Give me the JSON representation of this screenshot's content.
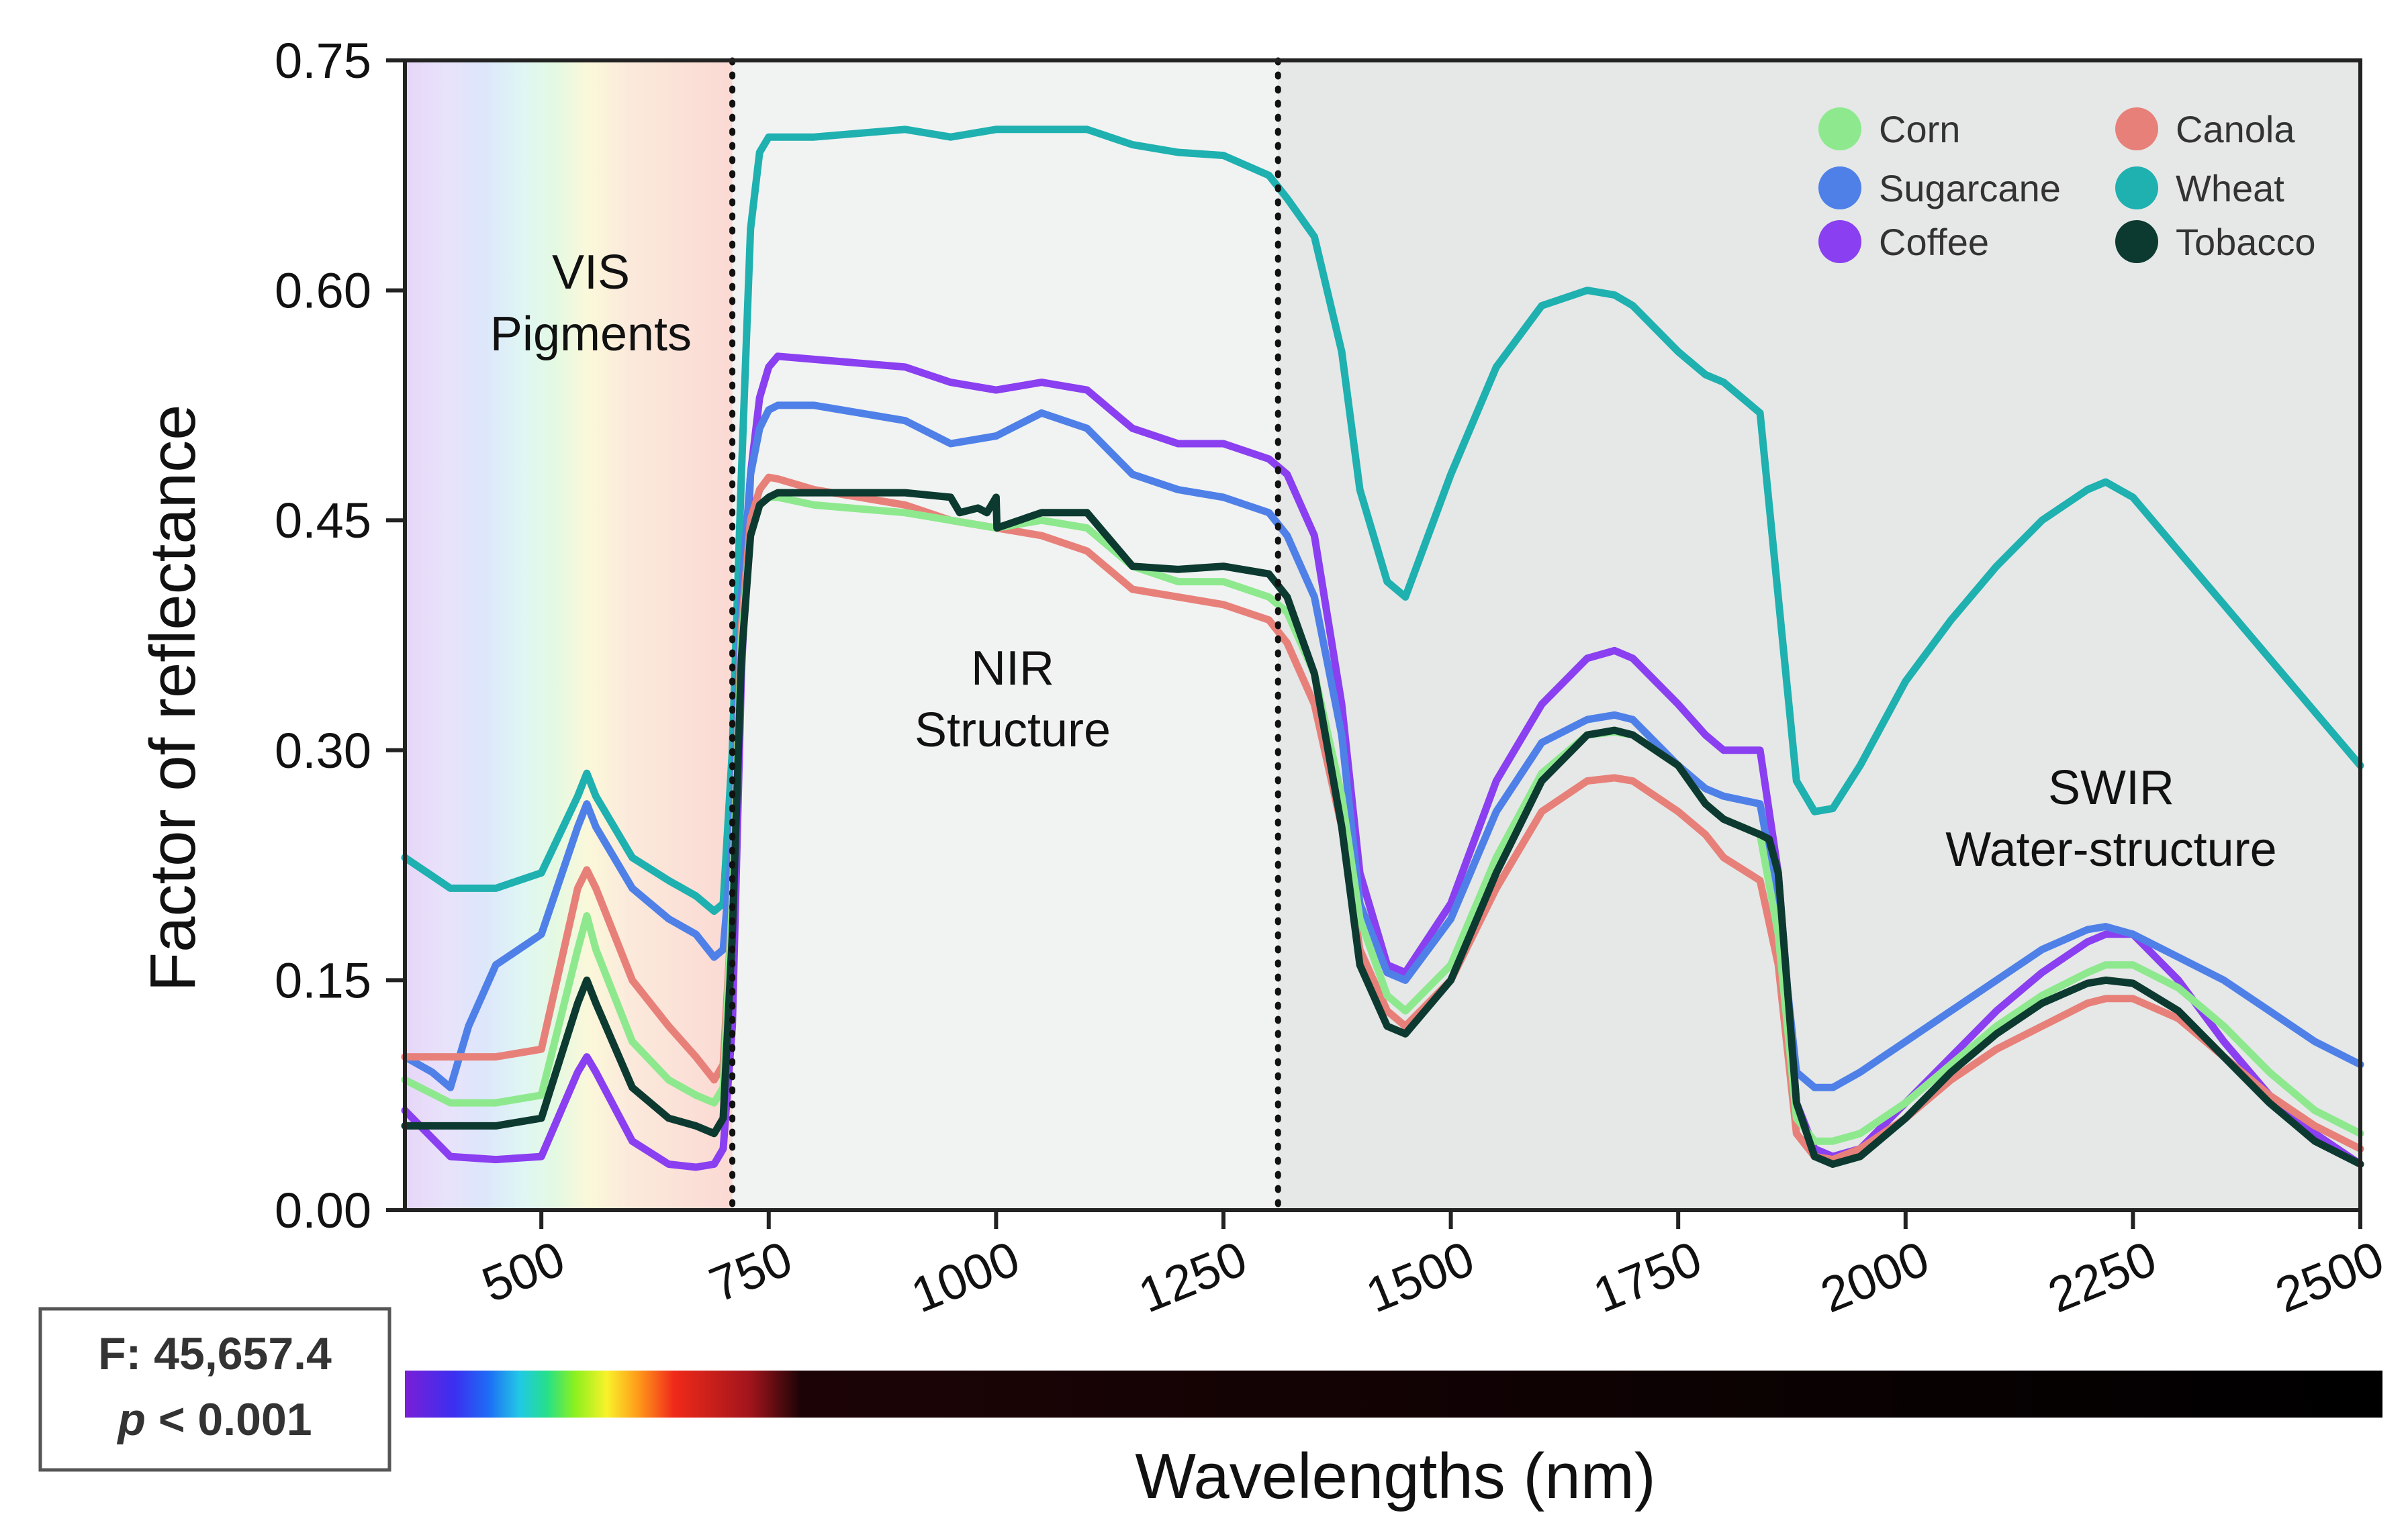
{
  "colors": {
    "Corn": "#8ee98e",
    "Sugarcane": "#4f80e8",
    "Coffee": "#8a3ff0",
    "Canola": "#e8807a",
    "Wheat": "#1fb0b0",
    "Tobacco": "#0d3a30"
  },
  "chart_data": {
    "type": "line",
    "xlabel": "Wavelengths (nm)",
    "ylabel": "Factor of reflectance",
    "xlim": [
      350,
      2500
    ],
    "ylim": [
      0,
      0.75
    ],
    "xticks": [
      "500",
      "750",
      "1000",
      "1250",
      "1500",
      "1750",
      "2000",
      "2250",
      "2500"
    ],
    "yticks": [
      "0.00",
      "0.15",
      "0.30",
      "0.45",
      "0.60",
      "0.75"
    ],
    "region_boundaries_nm": [
      710,
      1310
    ],
    "regions": [
      {
        "line1": "VIS",
        "line2": "Pigments"
      },
      {
        "line1": "NIR",
        "line2": "Structure"
      },
      {
        "line1": "SWIR",
        "line2": "Water-structure"
      }
    ],
    "stats": {
      "f_text": "F: 45,657.4",
      "p_symbol": "p",
      "p_rest": " < 0.001"
    },
    "legend": [
      "Corn",
      "Canola",
      "Sugarcane",
      "Wheat",
      "Coffee",
      "Tobacco"
    ],
    "series": [
      {
        "name": "Wheat",
        "x": [
          350,
          400,
          450,
          500,
          540,
          550,
          560,
          600,
          640,
          670,
          690,
          700,
          710,
          720,
          730,
          740,
          750,
          800,
          900,
          950,
          1000,
          1050,
          1100,
          1150,
          1200,
          1250,
          1300,
          1320,
          1350,
          1380,
          1400,
          1430,
          1450,
          1500,
          1550,
          1600,
          1650,
          1680,
          1700,
          1750,
          1780,
          1800,
          1840,
          1860,
          1880,
          1900,
          1920,
          1950,
          2000,
          2050,
          2100,
          2150,
          2200,
          2220,
          2250,
          2300,
          2350,
          2400,
          2450,
          2500
        ],
        "y": [
          0.23,
          0.21,
          0.21,
          0.22,
          0.27,
          0.285,
          0.27,
          0.23,
          0.215,
          0.205,
          0.195,
          0.2,
          0.3,
          0.48,
          0.64,
          0.69,
          0.7,
          0.7,
          0.705,
          0.7,
          0.705,
          0.705,
          0.705,
          0.695,
          0.69,
          0.688,
          0.675,
          0.66,
          0.635,
          0.56,
          0.47,
          0.41,
          0.4,
          0.48,
          0.55,
          0.59,
          0.6,
          0.597,
          0.59,
          0.56,
          0.545,
          0.54,
          0.52,
          0.4,
          0.28,
          0.26,
          0.262,
          0.29,
          0.345,
          0.385,
          0.42,
          0.45,
          0.47,
          0.475,
          0.465,
          0.43,
          0.395,
          0.36,
          0.325,
          0.29
        ]
      },
      {
        "name": "Coffee",
        "x": [
          350,
          400,
          450,
          500,
          540,
          550,
          560,
          600,
          640,
          670,
          690,
          700,
          710,
          720,
          730,
          740,
          750,
          760,
          800,
          900,
          950,
          1000,
          1050,
          1100,
          1150,
          1200,
          1250,
          1300,
          1320,
          1350,
          1380,
          1400,
          1430,
          1450,
          1500,
          1550,
          1600,
          1650,
          1680,
          1700,
          1750,
          1780,
          1800,
          1840,
          1860,
          1880,
          1900,
          1920,
          1950,
          2000,
          2050,
          2100,
          2150,
          2200,
          2220,
          2250,
          2300,
          2350,
          2400,
          2450,
          2500
        ],
        "y": [
          0.065,
          0.035,
          0.033,
          0.035,
          0.09,
          0.1,
          0.09,
          0.045,
          0.03,
          0.028,
          0.03,
          0.04,
          0.12,
          0.35,
          0.48,
          0.53,
          0.55,
          0.557,
          0.555,
          0.55,
          0.54,
          0.535,
          0.54,
          0.535,
          0.51,
          0.5,
          0.5,
          0.49,
          0.48,
          0.44,
          0.33,
          0.22,
          0.16,
          0.155,
          0.2,
          0.28,
          0.33,
          0.36,
          0.365,
          0.36,
          0.33,
          0.31,
          0.3,
          0.3,
          0.22,
          0.07,
          0.04,
          0.035,
          0.04,
          0.07,
          0.1,
          0.13,
          0.155,
          0.175,
          0.18,
          0.18,
          0.15,
          0.11,
          0.075,
          0.05,
          0.03
        ]
      },
      {
        "name": "Sugarcane",
        "x": [
          350,
          380,
          400,
          420,
          450,
          500,
          540,
          550,
          560,
          600,
          640,
          670,
          690,
          700,
          710,
          720,
          730,
          740,
          750,
          760,
          800,
          900,
          950,
          1000,
          1050,
          1100,
          1150,
          1200,
          1250,
          1300,
          1320,
          1350,
          1380,
          1400,
          1430,
          1450,
          1500,
          1550,
          1600,
          1650,
          1680,
          1700,
          1750,
          1780,
          1800,
          1840,
          1860,
          1880,
          1900,
          1920,
          1950,
          2000,
          2050,
          2100,
          2150,
          2200,
          2220,
          2250,
          2300,
          2350,
          2400,
          2450,
          2500
        ],
        "y": [
          0.1,
          0.09,
          0.08,
          0.12,
          0.16,
          0.18,
          0.25,
          0.265,
          0.25,
          0.21,
          0.19,
          0.18,
          0.165,
          0.17,
          0.24,
          0.4,
          0.48,
          0.51,
          0.522,
          0.525,
          0.525,
          0.515,
          0.5,
          0.505,
          0.52,
          0.51,
          0.48,
          0.47,
          0.465,
          0.455,
          0.44,
          0.4,
          0.31,
          0.2,
          0.155,
          0.15,
          0.19,
          0.26,
          0.305,
          0.32,
          0.323,
          0.32,
          0.29,
          0.275,
          0.27,
          0.265,
          0.2,
          0.09,
          0.08,
          0.08,
          0.09,
          0.11,
          0.13,
          0.15,
          0.17,
          0.183,
          0.185,
          0.18,
          0.165,
          0.15,
          0.13,
          0.11,
          0.095
        ]
      },
      {
        "name": "Canola",
        "x": [
          350,
          400,
          450,
          500,
          540,
          550,
          560,
          600,
          640,
          670,
          690,
          700,
          710,
          720,
          730,
          740,
          750,
          760,
          800,
          900,
          950,
          1000,
          1050,
          1100,
          1150,
          1200,
          1250,
          1300,
          1320,
          1350,
          1380,
          1400,
          1430,
          1450,
          1500,
          1550,
          1600,
          1650,
          1680,
          1700,
          1750,
          1780,
          1800,
          1840,
          1860,
          1880,
          1900,
          1920,
          1950,
          2000,
          2050,
          2100,
          2150,
          2200,
          2220,
          2250,
          2300,
          2350,
          2400,
          2450,
          2500
        ],
        "y": [
          0.1,
          0.1,
          0.1,
          0.105,
          0.21,
          0.222,
          0.21,
          0.15,
          0.12,
          0.1,
          0.085,
          0.095,
          0.2,
          0.38,
          0.45,
          0.47,
          0.478,
          0.477,
          0.47,
          0.46,
          0.45,
          0.445,
          0.44,
          0.43,
          0.405,
          0.4,
          0.395,
          0.385,
          0.37,
          0.33,
          0.25,
          0.17,
          0.13,
          0.12,
          0.15,
          0.21,
          0.26,
          0.28,
          0.282,
          0.28,
          0.26,
          0.245,
          0.23,
          0.215,
          0.16,
          0.05,
          0.035,
          0.033,
          0.04,
          0.06,
          0.085,
          0.105,
          0.12,
          0.135,
          0.138,
          0.138,
          0.125,
          0.1,
          0.075,
          0.055,
          0.04
        ]
      },
      {
        "name": "Corn",
        "x": [
          350,
          400,
          450,
          500,
          540,
          550,
          560,
          600,
          640,
          670,
          690,
          700,
          710,
          720,
          730,
          740,
          750,
          760,
          800,
          900,
          950,
          1000,
          1050,
          1100,
          1150,
          1200,
          1250,
          1300,
          1320,
          1350,
          1380,
          1400,
          1430,
          1450,
          1500,
          1550,
          1600,
          1650,
          1680,
          1700,
          1750,
          1780,
          1800,
          1840,
          1860,
          1880,
          1900,
          1920,
          1950,
          2000,
          2050,
          2100,
          2150,
          2200,
          2220,
          2250,
          2300,
          2350,
          2400,
          2450,
          2500
        ],
        "y": [
          0.085,
          0.07,
          0.07,
          0.075,
          0.17,
          0.192,
          0.17,
          0.11,
          0.085,
          0.075,
          0.07,
          0.08,
          0.2,
          0.37,
          0.44,
          0.46,
          0.465,
          0.465,
          0.46,
          0.455,
          0.45,
          0.445,
          0.45,
          0.445,
          0.42,
          0.41,
          0.41,
          0.4,
          0.39,
          0.35,
          0.27,
          0.19,
          0.14,
          0.13,
          0.16,
          0.23,
          0.285,
          0.31,
          0.312,
          0.31,
          0.29,
          0.265,
          0.255,
          0.245,
          0.18,
          0.06,
          0.045,
          0.045,
          0.05,
          0.07,
          0.095,
          0.12,
          0.14,
          0.155,
          0.16,
          0.16,
          0.145,
          0.12,
          0.09,
          0.065,
          0.05
        ]
      },
      {
        "name": "Tobacco",
        "x": [
          350,
          400,
          450,
          500,
          540,
          550,
          560,
          600,
          640,
          670,
          690,
          700,
          710,
          720,
          730,
          740,
          750,
          760,
          800,
          900,
          950,
          960,
          980,
          990,
          1000,
          1001,
          1050,
          1100,
          1150,
          1200,
          1250,
          1300,
          1320,
          1350,
          1380,
          1400,
          1430,
          1450,
          1500,
          1550,
          1600,
          1650,
          1680,
          1700,
          1750,
          1780,
          1800,
          1840,
          1850,
          1860,
          1880,
          1900,
          1920,
          1950,
          2000,
          2050,
          2100,
          2150,
          2200,
          2220,
          2250,
          2300,
          2350,
          2400,
          2450,
          2500
        ],
        "y": [
          0.055,
          0.055,
          0.055,
          0.06,
          0.135,
          0.15,
          0.135,
          0.08,
          0.06,
          0.055,
          0.05,
          0.06,
          0.18,
          0.36,
          0.44,
          0.46,
          0.465,
          0.468,
          0.468,
          0.468,
          0.465,
          0.455,
          0.458,
          0.455,
          0.465,
          0.445,
          0.455,
          0.455,
          0.42,
          0.418,
          0.42,
          0.415,
          0.4,
          0.35,
          0.25,
          0.16,
          0.12,
          0.115,
          0.15,
          0.22,
          0.28,
          0.31,
          0.313,
          0.31,
          0.29,
          0.265,
          0.255,
          0.245,
          0.242,
          0.22,
          0.07,
          0.035,
          0.03,
          0.035,
          0.06,
          0.09,
          0.115,
          0.135,
          0.148,
          0.15,
          0.148,
          0.13,
          0.1,
          0.07,
          0.045,
          0.03
        ]
      }
    ]
  }
}
